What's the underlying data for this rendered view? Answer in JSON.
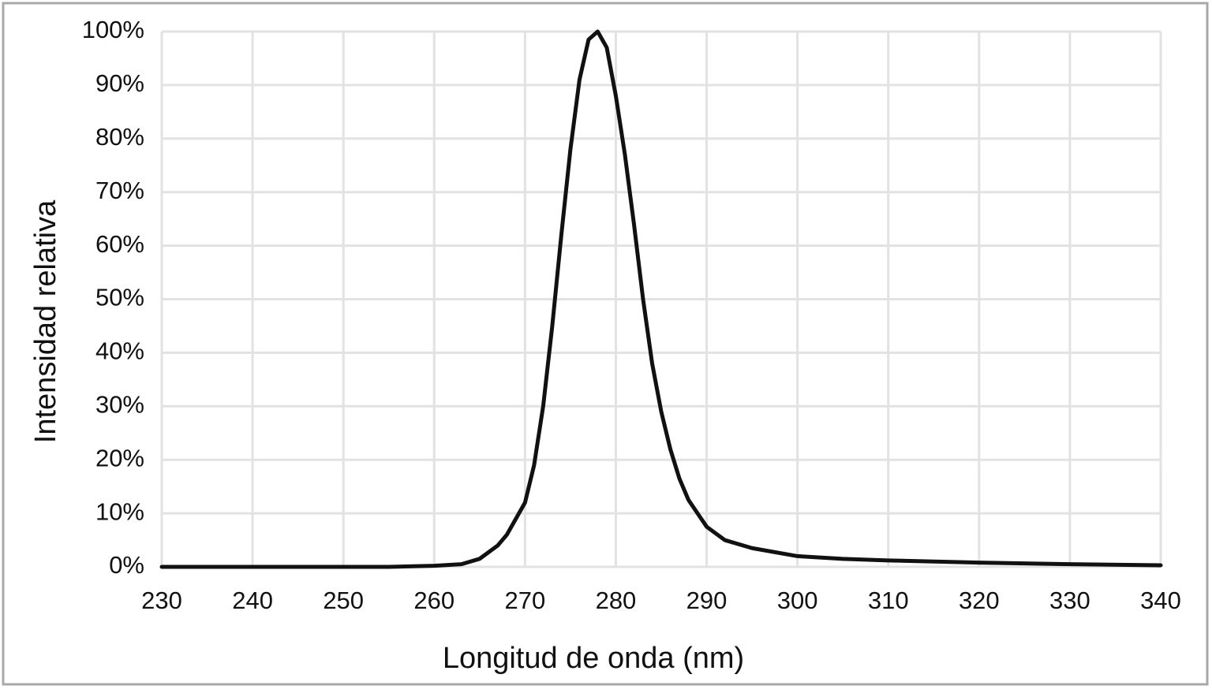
{
  "chart_data": {
    "type": "line",
    "x_label": "Longitud de onda (nm)",
    "y_label": "Intensidad relativa",
    "x": [
      230,
      240,
      250,
      255,
      260,
      263,
      265,
      267,
      268,
      270,
      271,
      272,
      273,
      274,
      275,
      276,
      277,
      278,
      279,
      280,
      281,
      282,
      283,
      284,
      285,
      286,
      287,
      288,
      290,
      292,
      295,
      300,
      305,
      310,
      320,
      330,
      340
    ],
    "series": [
      {
        "name": "Intensidad relativa",
        "color": "#111111",
        "values": [
          0,
          0,
          0,
          0,
          0.2,
          0.5,
          1.5,
          4,
          6,
          12,
          19,
          30,
          45,
          62,
          78,
          91,
          98.5,
          100,
          97,
          88,
          77,
          64,
          50,
          38,
          29,
          22,
          16.5,
          12.5,
          7.5,
          5,
          3.5,
          2,
          1.5,
          1.2,
          0.8,
          0.5,
          0.3
        ]
      }
    ],
    "xlim": [
      230,
      340
    ],
    "xticks": [
      230,
      240,
      250,
      260,
      270,
      280,
      290,
      300,
      310,
      320,
      330,
      340
    ],
    "ylim": [
      0,
      100
    ],
    "yticks": [
      {
        "value": 0,
        "label": "0%"
      },
      {
        "value": 10,
        "label": "10%"
      },
      {
        "value": 20,
        "label": "20%"
      },
      {
        "value": 30,
        "label": "30%"
      },
      {
        "value": 40,
        "label": "40%"
      },
      {
        "value": 50,
        "label": "50%"
      },
      {
        "value": 60,
        "label": "60%"
      },
      {
        "value": 70,
        "label": "70%"
      },
      {
        "value": 80,
        "label": "80%"
      },
      {
        "value": 90,
        "label": "90%"
      },
      {
        "value": 100,
        "label": "100%"
      }
    ],
    "grid": true
  }
}
